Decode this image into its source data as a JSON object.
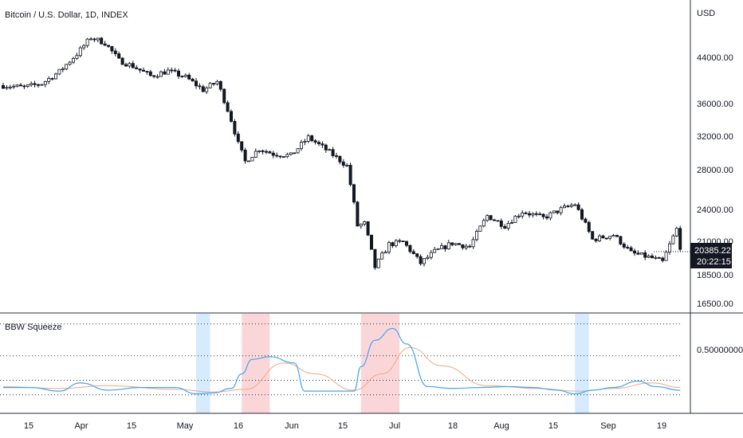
{
  "header": {
    "title": "Bitcoin / U.S. Dollar, 1D, INDEX"
  },
  "price_axis": {
    "currency": "USD",
    "ticks": [
      "44000.00",
      "36000.00",
      "32000.00",
      "28000.00",
      "24000.00",
      "21000.00",
      "18500.00",
      "16500.00"
    ],
    "last_price": "20385.22",
    "countdown": "20:22:15"
  },
  "indicator": {
    "name": "BBW Squeeze",
    "tick": "0.50000000",
    "highlight_colors": {
      "squeeze": "#bbdefb",
      "expansion": "#f8bbc0"
    }
  },
  "time_axis": {
    "labels": [
      "15",
      "Apr",
      "15",
      "May",
      "16",
      "Jun",
      "15",
      "Jul",
      "18",
      "Aug",
      "15",
      "Sep",
      "19"
    ]
  },
  "colors": {
    "up": "#ffffff",
    "down": "#131722",
    "bbw_line": "#42a5f5",
    "bbw_ma": "#f4a582",
    "grid_border": "#2a2e39"
  },
  "chart_data": [
    {
      "type": "candlestick",
      "title": "Bitcoin / U.S. Dollar, 1D, INDEX",
      "ylabel": "USD",
      "y_scale": "log",
      "ylim": [
        15500,
        50000
      ],
      "x_range": [
        "2022-03-04",
        "2022-09-13"
      ],
      "approx_closes": {
        "x": [
          "2022-03-04",
          "2022-03-10",
          "2022-03-15",
          "2022-03-20",
          "2022-03-25",
          "2022-03-29",
          "2022-04-02",
          "2022-04-06",
          "2022-04-10",
          "2022-04-15",
          "2022-04-20",
          "2022-04-25",
          "2022-04-30",
          "2022-05-04",
          "2022-05-08",
          "2022-05-10",
          "2022-05-12",
          "2022-05-16",
          "2022-05-20",
          "2022-05-25",
          "2022-05-30",
          "2022-06-05",
          "2022-06-10",
          "2022-06-13",
          "2022-06-15",
          "2022-06-18",
          "2022-06-22",
          "2022-06-26",
          "2022-07-01",
          "2022-07-05",
          "2022-07-10",
          "2022-07-15",
          "2022-07-20",
          "2022-07-25",
          "2022-07-30",
          "2022-08-05",
          "2022-08-10",
          "2022-08-14",
          "2022-08-19",
          "2022-08-25",
          "2022-08-30",
          "2022-09-05",
          "2022-09-08",
          "2022-09-12",
          "2022-09-13"
        ],
        "y": [
          39100,
          38800,
          39400,
          41300,
          44300,
          47300,
          46300,
          43200,
          42200,
          40600,
          41400,
          40400,
          38400,
          39700,
          34100,
          31000,
          28900,
          30400,
          29800,
          29600,
          31800,
          30000,
          28400,
          22400,
          22600,
          19000,
          20800,
          21000,
          19300,
          20200,
          20900,
          20600,
          23300,
          22400,
          23700,
          23100,
          23900,
          24400,
          21200,
          21600,
          20100,
          19700,
          19400,
          22100,
          20385.22
        ]
      }
    },
    {
      "type": "line",
      "title": "BBW Squeeze",
      "series": [
        {
          "x": [
            "2022-03-04",
            "2022-03-12",
            "2022-03-20",
            "2022-03-26",
            "2022-04-03",
            "2022-04-12",
            "2022-04-22",
            "2022-04-28",
            "2022-05-03",
            "2022-05-08",
            "2022-05-11",
            "2022-05-14",
            "2022-05-19",
            "2022-05-26",
            "2022-05-29",
            "2022-06-05",
            "2022-06-12",
            "2022-06-14",
            "2022-06-18",
            "2022-06-23",
            "2022-06-27",
            "2022-07-03",
            "2022-07-10",
            "2022-07-18",
            "2022-07-26",
            "2022-08-02",
            "2022-08-09",
            "2022-08-14",
            "2022-08-19",
            "2022-08-25",
            "2022-09-01",
            "2022-09-06",
            "2022-09-13"
          ],
          "y": [
            0.1,
            0.1,
            0.06,
            0.15,
            0.07,
            0.1,
            0.1,
            0.03,
            0.04,
            0.09,
            0.25,
            0.41,
            0.44,
            0.37,
            0.06,
            0.06,
            0.06,
            0.33,
            0.62,
            0.75,
            0.58,
            0.11,
            0.09,
            0.1,
            0.11,
            0.1,
            0.07,
            0.03,
            0.07,
            0.1,
            0.17,
            0.11,
            0.07
          ]
        },
        {
          "x": [
            "2022-03-04",
            "2022-03-20",
            "2022-04-03",
            "2022-04-22",
            "2022-05-03",
            "2022-05-12",
            "2022-05-23",
            "2022-06-01",
            "2022-06-12",
            "2022-06-20",
            "2022-06-28",
            "2022-07-07",
            "2022-07-20",
            "2022-08-03",
            "2022-08-15",
            "2022-08-25",
            "2022-09-05",
            "2022-09-13"
          ],
          "y": [
            0.11,
            0.09,
            0.12,
            0.08,
            0.05,
            0.08,
            0.37,
            0.25,
            0.07,
            0.25,
            0.54,
            0.34,
            0.12,
            0.09,
            0.06,
            0.09,
            0.15,
            0.1
          ]
        }
      ],
      "reference_levels": [
        0.02,
        0.18,
        0.45,
        0.8
      ],
      "highlights": [
        {
          "kind": "squeeze",
          "from": "2022-04-28",
          "to": "2022-05-01"
        },
        {
          "kind": "expansion",
          "from": "2022-05-11",
          "to": "2022-05-18"
        },
        {
          "kind": "expansion",
          "from": "2022-06-14",
          "to": "2022-06-24"
        },
        {
          "kind": "squeeze",
          "from": "2022-08-14",
          "to": "2022-08-17"
        }
      ]
    }
  ]
}
